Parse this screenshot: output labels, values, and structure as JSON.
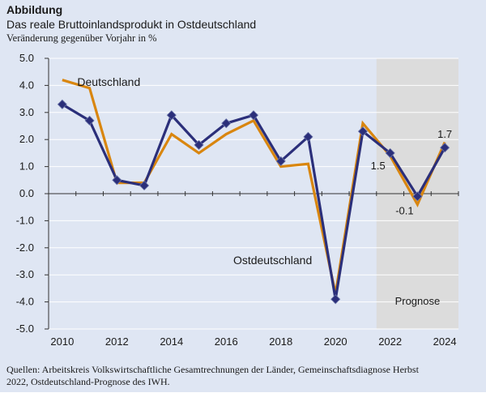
{
  "figure": {
    "label": "Abbildung",
    "title": "Das reale Bruttoinlandsprodukt in Ostdeutschland",
    "subtitle": "Veränderung gegenüber Vorjahr in %",
    "source_line1": "Quellen: Arbeitskreis Volkswirtschaftliche Gesamtrechnungen der Länder, Gemeinschaftsdiagnose Herbst",
    "source_line2": "2022, Ostdeutschland-Prognose des IWH."
  },
  "colors": {
    "background": "#dfe6f3",
    "forecast_band": "#dcdcdc",
    "deutschland": "#d9860f",
    "ostdeutschland": "#2b2f7a",
    "grid": "#ffffff"
  },
  "chart_data": {
    "type": "line",
    "x": [
      2010,
      2011,
      2012,
      2013,
      2014,
      2015,
      2016,
      2017,
      2018,
      2019,
      2020,
      2021,
      2022,
      2023,
      2024
    ],
    "series": [
      {
        "name": "Deutschland",
        "values": [
          4.2,
          3.9,
          0.4,
          0.4,
          2.2,
          1.5,
          2.2,
          2.7,
          1.0,
          1.1,
          -3.7,
          2.6,
          1.4,
          -0.4,
          1.9
        ]
      },
      {
        "name": "Ostdeutschland",
        "values": [
          3.3,
          2.7,
          0.5,
          0.3,
          2.9,
          1.8,
          2.6,
          2.9,
          1.2,
          2.1,
          -3.9,
          2.3,
          1.5,
          -0.1,
          1.7
        ]
      }
    ],
    "ylim": [
      -5.0,
      5.0
    ],
    "yticks": [
      "5.0",
      "4.0",
      "3.0",
      "2.0",
      "1.0",
      "0.0",
      "-1.0",
      "-2.0",
      "-3.0",
      "-4.0",
      "-5.0"
    ],
    "xticks": [
      "2010",
      "2012",
      "2014",
      "2016",
      "2018",
      "2020",
      "2022",
      "2024"
    ],
    "forecast_range": [
      2021.5,
      2024.5
    ],
    "forecast_label": "Prognose",
    "point_labels": [
      {
        "x": 2022,
        "text": "1.5"
      },
      {
        "x": 2023,
        "text": "-0.1"
      },
      {
        "x": 2024,
        "text": "1.7"
      }
    ],
    "grid": "horizontal"
  }
}
